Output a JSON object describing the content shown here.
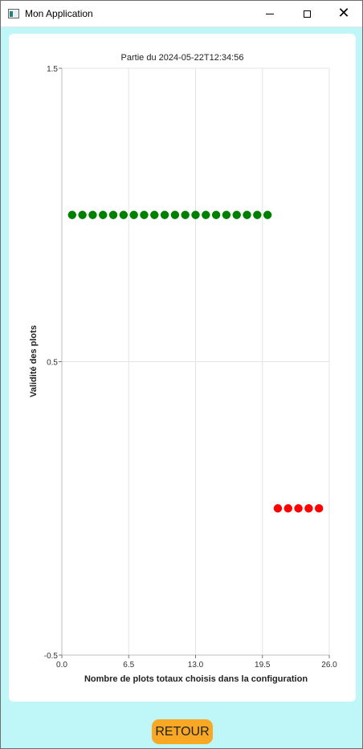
{
  "window": {
    "title": "Mon Application",
    "icon": "app-window-icon",
    "controls": [
      "minimize-icon",
      "maximize-icon",
      "close-icon"
    ],
    "close_glyph": "✕"
  },
  "chart_data": {
    "type": "scatter",
    "title": "Partie du 2024-05-22T12:34:56",
    "xlabel": "Nombre de plots totaux choisis dans la configuration",
    "ylabel": "Validité des plots",
    "xlim": [
      0,
      26
    ],
    "ylim": [
      -0.5,
      1.5
    ],
    "x_ticks": [
      "0.0",
      "6.5",
      "13.0",
      "19.5",
      "26.0"
    ],
    "y_ticks": [
      "-0.5",
      "0.5",
      "1.5"
    ],
    "grid": true,
    "series": [
      {
        "color": "#008000",
        "points": [
          [
            1,
            1
          ],
          [
            2,
            1
          ],
          [
            3,
            1
          ],
          [
            4,
            1
          ],
          [
            5,
            1
          ],
          [
            6,
            1
          ],
          [
            7,
            1
          ],
          [
            8,
            1
          ],
          [
            9,
            1
          ],
          [
            10,
            1
          ],
          [
            11,
            1
          ],
          [
            12,
            1
          ],
          [
            13,
            1
          ],
          [
            14,
            1
          ],
          [
            15,
            1
          ],
          [
            16,
            1
          ],
          [
            17,
            1
          ],
          [
            18,
            1
          ],
          [
            19,
            1
          ],
          [
            20,
            1
          ]
        ]
      },
      {
        "color": "#ff0000",
        "points": [
          [
            21,
            0
          ],
          [
            22,
            0
          ],
          [
            23,
            0
          ],
          [
            24,
            0
          ],
          [
            25,
            0
          ]
        ]
      }
    ]
  },
  "footer": {
    "retour_label": "RETOUR",
    "retour_color": "#f9a825"
  }
}
